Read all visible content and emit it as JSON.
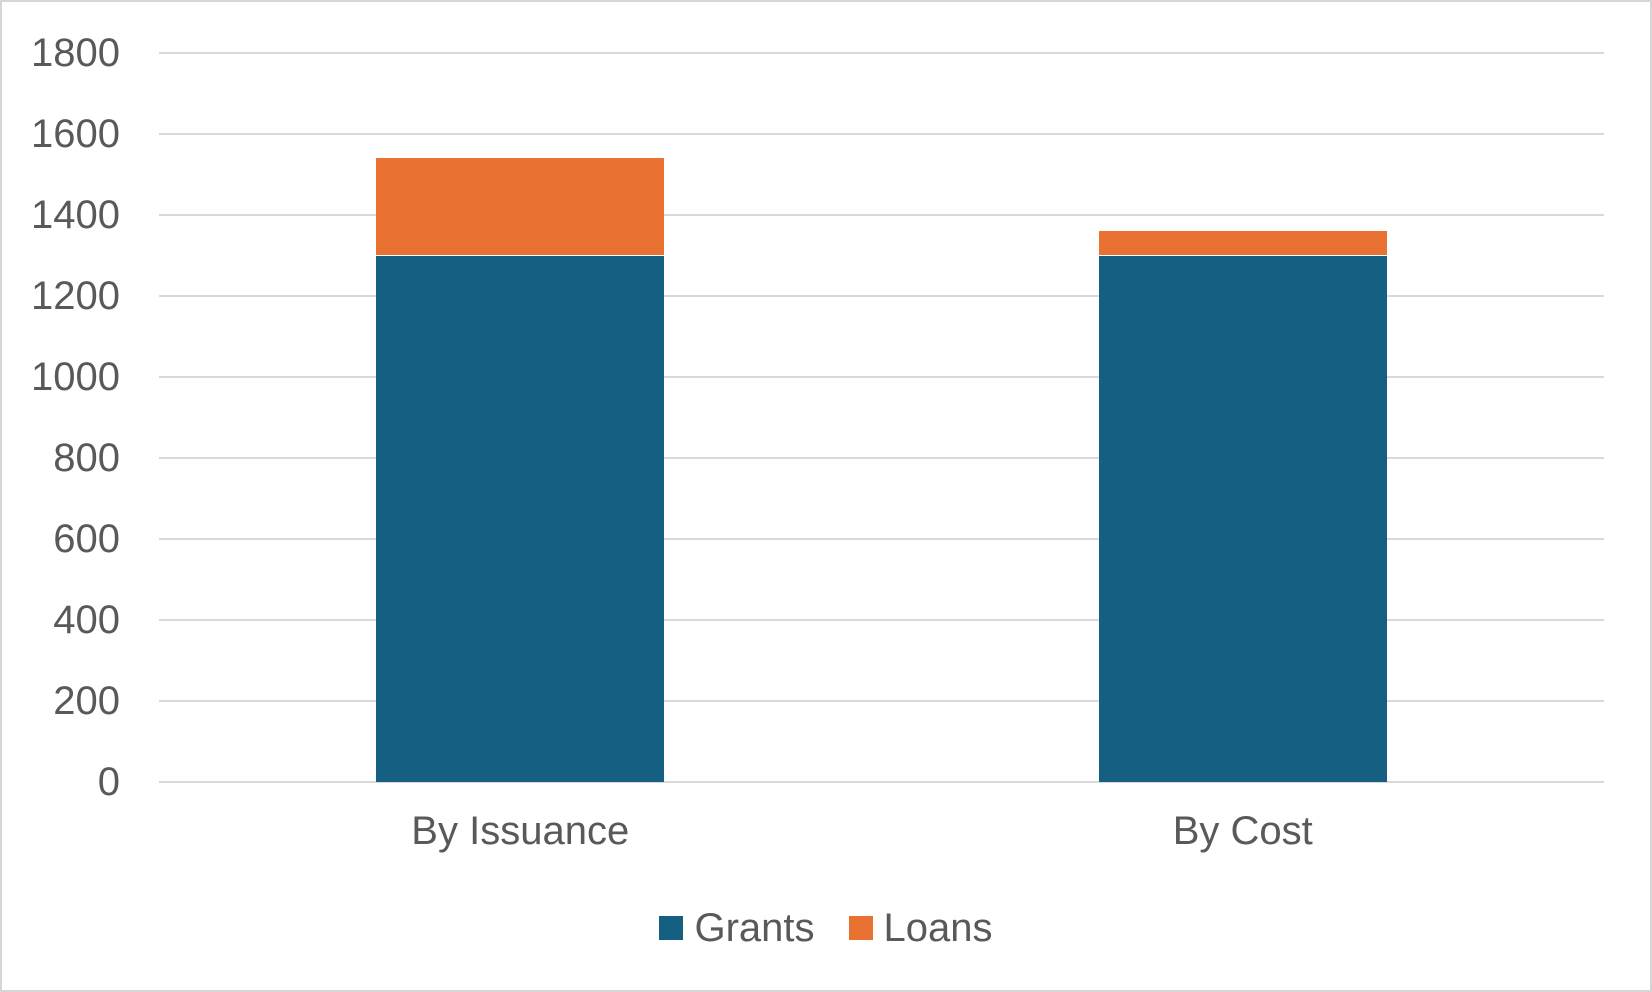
{
  "chart_data": {
    "type": "bar",
    "stacked": true,
    "title": "",
    "xlabel": "",
    "ylabel": "",
    "categories": [
      "By Issuance",
      "By Cost"
    ],
    "series": [
      {
        "name": "Grants",
        "color": "#156082",
        "values": [
          1300,
          1300
        ]
      },
      {
        "name": "Loans",
        "color": "#E97132",
        "values": [
          240,
          60
        ]
      }
    ],
    "totals": [
      1540,
      1360
    ],
    "ylim": [
      0,
      1800
    ],
    "ytick_interval": 200,
    "ytick_labels": [
      "0",
      "200",
      "400",
      "600",
      "800",
      "1000",
      "1200",
      "1400",
      "1600",
      "1800"
    ],
    "grid": true,
    "legend_position": "bottom",
    "legend_entries": [
      "Grants",
      "Loans"
    ]
  },
  "styles": {
    "background": "#FFFFFF",
    "border": "#D6D6D6",
    "gridline": "#D9D9D9",
    "text": "#595959",
    "grants_color": "#156082",
    "loans_color": "#E97132"
  }
}
